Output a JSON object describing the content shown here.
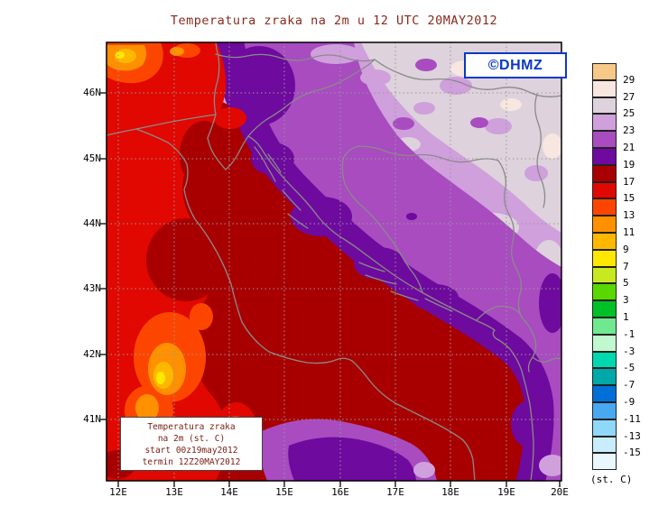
{
  "title": "Temperatura zraka na 2m u 12 UTC 20MAY2012",
  "logo": {
    "text": "©DHMZ",
    "color": "#0a38c8"
  },
  "legend_box": {
    "line1": "Temperatura zraka",
    "line2": "na 2m (st. C)",
    "line3": "start 00z19may2012",
    "line4": "termin 12Z20MAY2012"
  },
  "axes": {
    "y_labels": [
      "46N",
      "45N",
      "44N",
      "43N",
      "42N",
      "41N"
    ],
    "x_labels": [
      "12E",
      "13E",
      "14E",
      "15E",
      "16E",
      "17E",
      "18E",
      "19E",
      "20E"
    ]
  },
  "chart_data": {
    "type": "heatmap",
    "subtype": "filled-contour-temperature-map",
    "title": "Temperatura zraka na 2m u 12 UTC 20MAY2012",
    "variable": "air temperature at 2 m",
    "valid_time": "12 UTC 20MAY2012",
    "run_start": "start 00z19may2012",
    "run_valid": "termin 12Z20MAY2012",
    "units_label": "(st. C)",
    "extent": {
      "lon": [
        11.8,
        20.0
      ],
      "lat": [
        40.1,
        46.8
      ]
    },
    "scale_labels": [
      "29",
      "27",
      "25",
      "23",
      "21",
      "19",
      "17",
      "15",
      "13",
      "11",
      "9",
      "7",
      "5",
      "3",
      "1",
      "-1",
      "-3",
      "-5",
      "-7",
      "-9",
      "-11",
      "-13",
      "-15"
    ],
    "palette": [
      "#f8c888",
      "#f8e6e0",
      "#ded2dc",
      "#cfa0dc",
      "#a84cc0",
      "#6e0a9e",
      "#a80000",
      "#e00800",
      "#fc4600",
      "#ff9000",
      "#ffb800",
      "#ffe800",
      "#c8e820",
      "#58d800",
      "#00c028",
      "#70e890",
      "#c0f8d0",
      "#00d8b0",
      "#00a8a8",
      "#0070d8",
      "#48a8f0",
      "#90d8f8",
      "#c8eefc",
      "#e8f8fe"
    ],
    "regions": [
      {
        "area": "Adriatic Sea",
        "temp_c": "17-19"
      },
      {
        "area": "Northern and central Italy (Po valley, Apennine flanks)",
        "temp_c": "15-17"
      },
      {
        "area": "Alps, NW corner",
        "temp_c": "9-15"
      },
      {
        "area": "Central Apennines spots",
        "temp_c": "7-15"
      },
      {
        "area": "Istria and Dinaric coastal mountains",
        "temp_c": "19-21"
      },
      {
        "area": "Central Croatia and Bosnia",
        "temp_c": "21-23"
      },
      {
        "area": "Slavonia / Pannonian plain (NE)",
        "temp_c": "23-27"
      },
      {
        "area": "NE corner local spots",
        "temp_c": "27-29"
      },
      {
        "area": "Southern Italy (Apulia interior)",
        "temp_c": "19-23"
      },
      {
        "area": "Montenegro / Albania interior (SE corner)",
        "temp_c": "19-25"
      }
    ]
  }
}
